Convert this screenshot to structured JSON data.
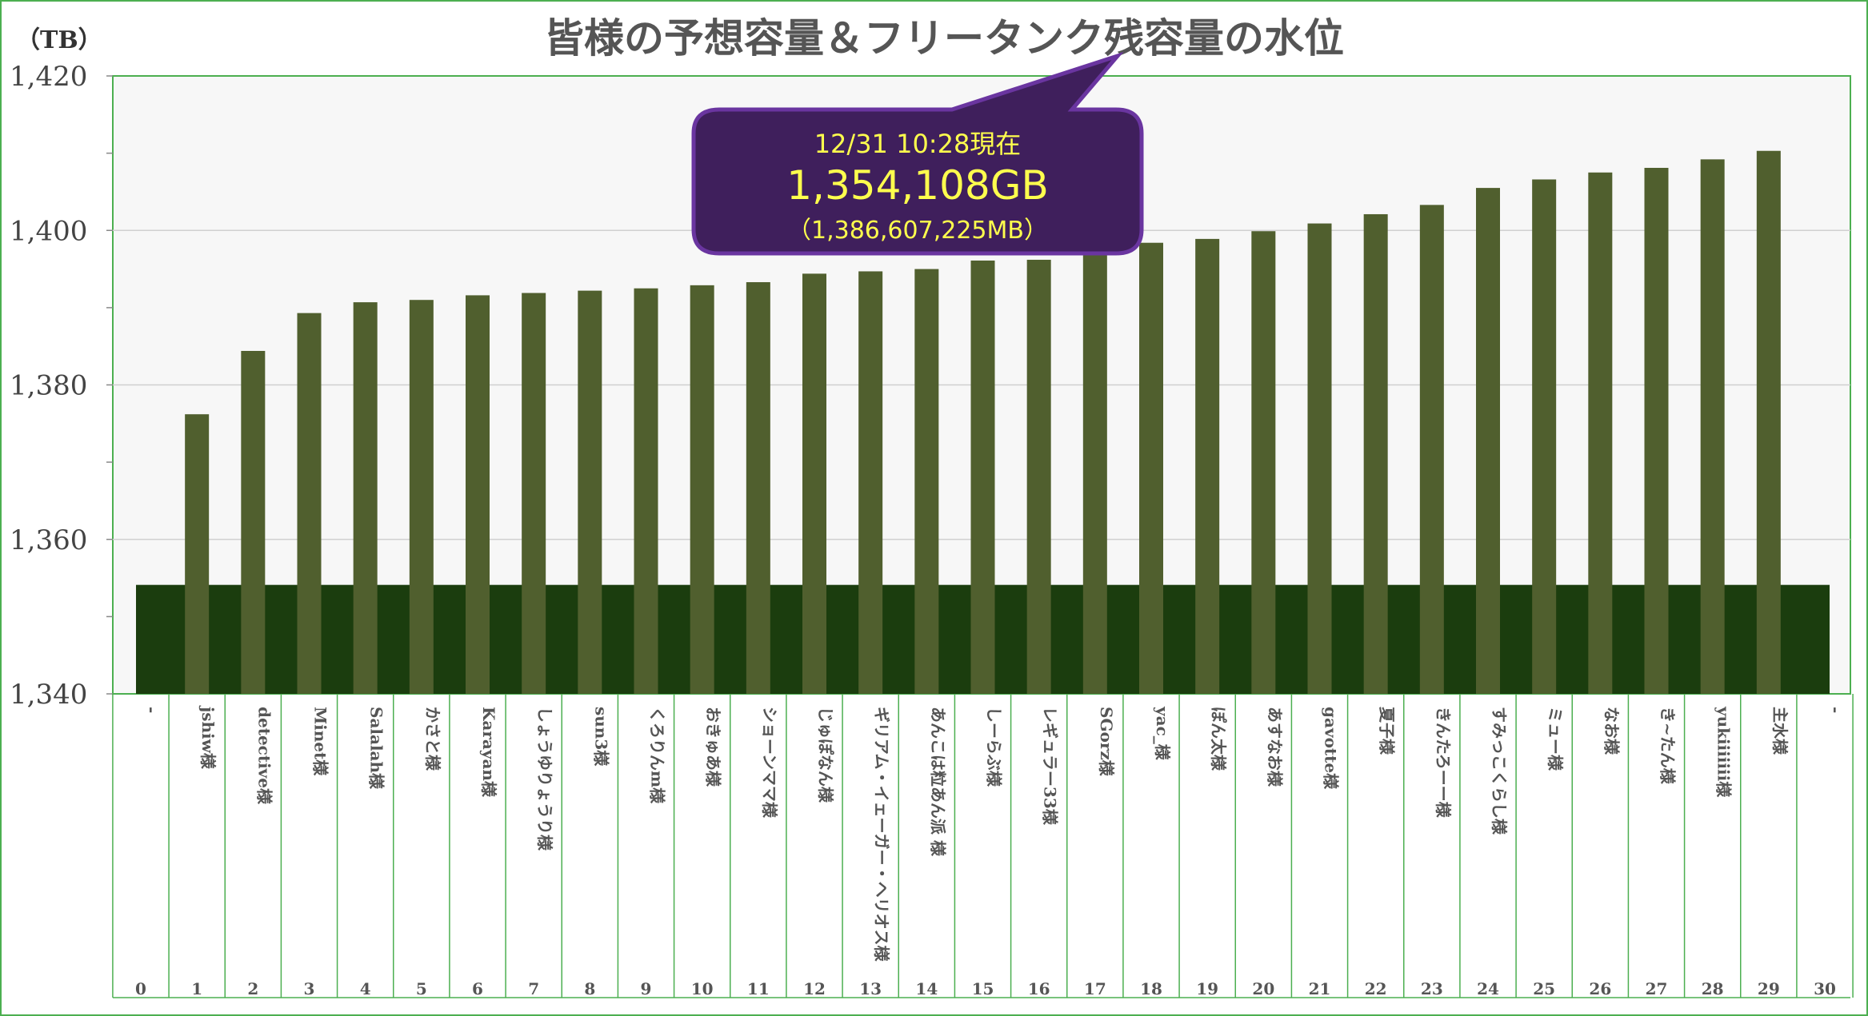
{
  "chart_data": {
    "type": "bar",
    "title": "皆様の予想容量＆フリータンク残容量の水位",
    "ylabel": "（TB）",
    "xlabel": "",
    "ylim": [
      1340,
      1420
    ],
    "yticks": [
      "1,340",
      "1,360",
      "1,380",
      "1,400",
      "1,420"
    ],
    "ytick_values": [
      1340,
      1360,
      1380,
      1400,
      1420
    ],
    "grid": true,
    "categories": [
      "0",
      "1",
      "2",
      "3",
      "4",
      "5",
      "6",
      "7",
      "8",
      "9",
      "10",
      "11",
      "12",
      "13",
      "14",
      "15",
      "16",
      "17",
      "18",
      "19",
      "20",
      "21",
      "22",
      "23",
      "24",
      "25",
      "26",
      "27",
      "28",
      "29",
      "30"
    ],
    "names": [
      "-",
      "jshiw様",
      "detective様",
      "Minet様",
      "Salalah様",
      "かさと様",
      "Karayan様",
      "しょうゆりょうり様",
      "sun3様",
      "くろりんm様",
      "おきゅあ様",
      "ショーンママ様",
      "じゅぽなん様",
      "ギリアム・イェーガー・ヘリオス様",
      "あんこは粒あん派 様",
      "しーらぶ様",
      "レギュラー33様",
      "SGorz様",
      "yac_様",
      "ぽん太様",
      "あすなお様",
      "gavotte様",
      "夏子様",
      "きんたろーー様",
      "すみっこくらし様",
      "ミュー様",
      "なお様",
      "き~たん様",
      "yukiiiiiii様",
      "主水様",
      "-"
    ],
    "series": [
      {
        "name": "予想容量",
        "color": "#505f2e",
        "values": [
          null,
          1376.2,
          1384.4,
          1389.3,
          1390.7,
          1391.0,
          1391.6,
          1391.9,
          1392.2,
          1392.5,
          1392.9,
          1393.3,
          1394.4,
          1394.7,
          1395.0,
          1396.1,
          1396.2,
          1397.0,
          1398.4,
          1398.9,
          1399.9,
          1400.9,
          1402.1,
          1403.3,
          1405.5,
          1406.6,
          1407.5,
          1408.1,
          1409.2,
          1410.3,
          null
        ]
      },
      {
        "name": "フリータンク残容量",
        "color": "#1b3d0e",
        "value": 1354.108
      }
    ],
    "annotation": {
      "datetime": "12/31 10:28現在",
      "gb": "1,354,108GB",
      "mb": "（1,386,607,225MB）",
      "fill": "#3f1f5c",
      "stroke": "#6a35a0",
      "text_color": "#ffff4d"
    },
    "border_color": "#4caf50"
  }
}
